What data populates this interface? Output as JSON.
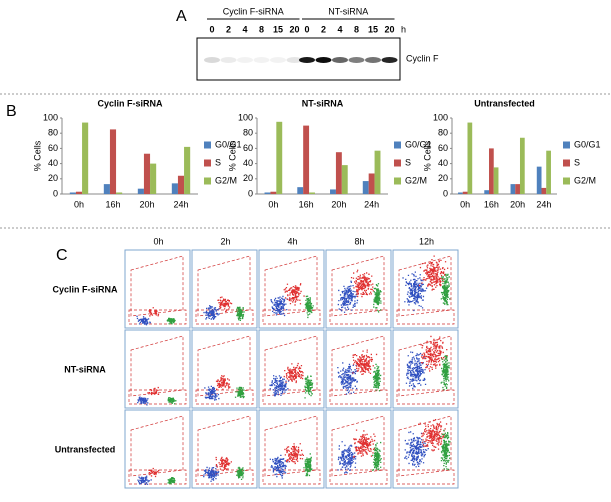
{
  "panel_a": {
    "label": "A",
    "groups": [
      {
        "name": "Cyclin F-siRNA",
        "lanes": [
          0,
          2,
          4,
          8,
          15,
          20
        ]
      },
      {
        "name": "NT-siRNA",
        "lanes": [
          0,
          2,
          4,
          8,
          15,
          20
        ]
      }
    ],
    "unit": "h",
    "band_label": "Cyclin F"
  },
  "panel_b": {
    "label": "B"
  },
  "chart_data": [
    {
      "type": "bar",
      "title": "Cyclin F-siRNA",
      "y_label": "% Cells",
      "categories": [
        "0h",
        "16h",
        "20h",
        "24h"
      ],
      "ylim": [
        0,
        100
      ],
      "yticks": [
        0,
        20,
        40,
        60,
        80,
        100
      ],
      "series": [
        {
          "name": "G0/G1",
          "color": "#4f81bd",
          "values": [
            2,
            13,
            7,
            14
          ]
        },
        {
          "name": "S",
          "color": "#c0504d",
          "values": [
            3,
            85,
            53,
            24
          ]
        },
        {
          "name": "G2/M",
          "color": "#9bbb59",
          "values": [
            94,
            2,
            40,
            62
          ]
        }
      ]
    },
    {
      "type": "bar",
      "title": "NT-siRNA",
      "y_label": "% Cells",
      "categories": [
        "0h",
        "16h",
        "20h",
        "24h"
      ],
      "ylim": [
        0,
        100
      ],
      "yticks": [
        0,
        20,
        40,
        60,
        80,
        100
      ],
      "series": [
        {
          "name": "G0/G1",
          "color": "#4f81bd",
          "values": [
            2,
            9,
            6,
            17
          ]
        },
        {
          "name": "S",
          "color": "#c0504d",
          "values": [
            3,
            90,
            55,
            27
          ]
        },
        {
          "name": "G2/M",
          "color": "#9bbb59",
          "values": [
            95,
            2,
            38,
            57
          ]
        }
      ]
    },
    {
      "type": "bar",
      "title": "Untransfected",
      "y_label": "% Cells",
      "categories": [
        "0h",
        "16h",
        "20h",
        "24h"
      ],
      "ylim": [
        0,
        100
      ],
      "yticks": [
        0,
        20,
        40,
        60,
        80,
        100
      ],
      "series": [
        {
          "name": "G0/G1",
          "color": "#4f81bd",
          "values": [
            2,
            5,
            13,
            36
          ]
        },
        {
          "name": "S",
          "color": "#c0504d",
          "values": [
            3,
            60,
            13,
            8
          ]
        },
        {
          "name": "G2/M",
          "color": "#9bbb59",
          "values": [
            94,
            35,
            74,
            57
          ]
        }
      ]
    }
  ],
  "panel_c": {
    "label": "C",
    "columns": [
      "0h",
      "2h",
      "4h",
      "8h",
      "12h"
    ],
    "rows": [
      "Cyclin F-siRNA",
      "NT-siRNA",
      "Untransfected"
    ]
  }
}
